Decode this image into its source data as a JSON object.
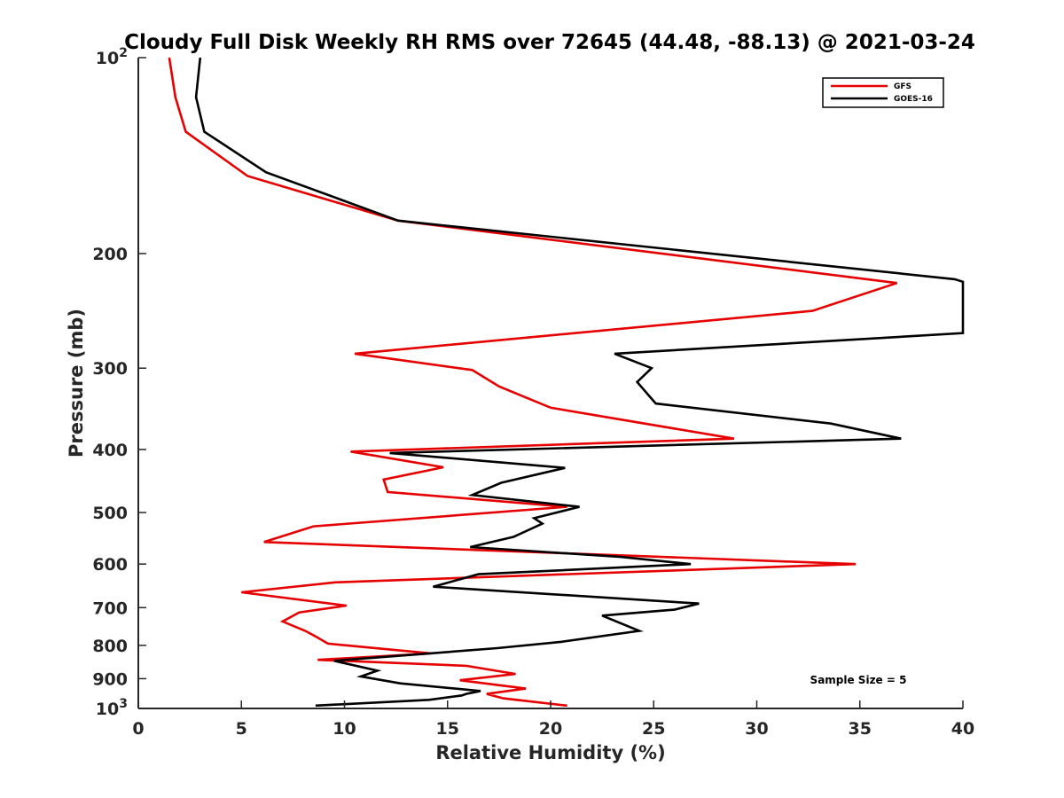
{
  "chart_data": {
    "type": "line",
    "title": "Cloudy Full Disk Weekly RH RMS over 72645 (44.48, -88.13) @ 2021-03-24",
    "xlabel": "Relative Humidity (%)",
    "ylabel": "Pressure (mb)",
    "xlim": [
      0,
      40
    ],
    "ylim": [
      100,
      1000
    ],
    "y_scale": "log",
    "y_reversed": true,
    "grid": false,
    "legend_position": "top-right",
    "x_ticks": [
      0,
      5,
      10,
      15,
      20,
      25,
      30,
      35,
      40
    ],
    "x_tick_labels": [
      "0",
      "5",
      "10",
      "15",
      "20",
      "25",
      "30",
      "35",
      "40"
    ],
    "y_ticks": [
      {
        "value": 100,
        "base": "10",
        "exp": "2"
      },
      {
        "value": 200,
        "label": "200"
      },
      {
        "value": 300,
        "label": "300"
      },
      {
        "value": 400,
        "label": "400"
      },
      {
        "value": 500,
        "label": "500"
      },
      {
        "value": 600,
        "label": "600"
      },
      {
        "value": 700,
        "label": "700"
      },
      {
        "value": 800,
        "label": "800"
      },
      {
        "value": 900,
        "label": "900"
      },
      {
        "value": 1000,
        "base": "10",
        "exp": "3"
      }
    ],
    "annotation": "Sample Size = 5",
    "series": [
      {
        "name": "GFS",
        "color": "#e60000",
        "points": [
          {
            "x": 1.5,
            "y": 100
          },
          {
            "x": 1.8,
            "y": 115
          },
          {
            "x": 2.3,
            "y": 130
          },
          {
            "x": 5.3,
            "y": 152
          },
          {
            "x": 12.6,
            "y": 178
          },
          {
            "x": 36.8,
            "y": 222
          },
          {
            "x": 32.7,
            "y": 245
          },
          {
            "x": 10.5,
            "y": 285
          },
          {
            "x": 16.2,
            "y": 302
          },
          {
            "x": 17.5,
            "y": 320
          },
          {
            "x": 20.0,
            "y": 345
          },
          {
            "x": 28.9,
            "y": 385
          },
          {
            "x": 10.3,
            "y": 403
          },
          {
            "x": 14.8,
            "y": 426
          },
          {
            "x": 11.9,
            "y": 445
          },
          {
            "x": 12.1,
            "y": 465
          },
          {
            "x": 20.8,
            "y": 490
          },
          {
            "x": 8.5,
            "y": 525
          },
          {
            "x": 6.1,
            "y": 555
          },
          {
            "x": 34.8,
            "y": 600
          },
          {
            "x": 9.6,
            "y": 640
          },
          {
            "x": 5.0,
            "y": 663
          },
          {
            "x": 10.1,
            "y": 695
          },
          {
            "x": 7.8,
            "y": 712
          },
          {
            "x": 7.0,
            "y": 735
          },
          {
            "x": 8.1,
            "y": 760
          },
          {
            "x": 8.6,
            "y": 775
          },
          {
            "x": 9.2,
            "y": 795
          },
          {
            "x": 14.2,
            "y": 823
          },
          {
            "x": 8.7,
            "y": 842
          },
          {
            "x": 15.9,
            "y": 860
          },
          {
            "x": 18.3,
            "y": 885
          },
          {
            "x": 15.6,
            "y": 905
          },
          {
            "x": 18.8,
            "y": 932
          },
          {
            "x": 16.9,
            "y": 950
          },
          {
            "x": 17.7,
            "y": 965
          },
          {
            "x": 20.8,
            "y": 990
          }
        ]
      },
      {
        "name": "GOES-16",
        "color": "#000000",
        "points": [
          {
            "x": 3.0,
            "y": 100
          },
          {
            "x": 2.8,
            "y": 115
          },
          {
            "x": 3.2,
            "y": 130
          },
          {
            "x": 6.2,
            "y": 150
          },
          {
            "x": 12.6,
            "y": 178
          },
          {
            "x": 39.6,
            "y": 219
          },
          {
            "x": 40.0,
            "y": 221
          },
          {
            "x": 40.0,
            "y": 265
          },
          {
            "x": 23.1,
            "y": 285
          },
          {
            "x": 24.9,
            "y": 300
          },
          {
            "x": 24.2,
            "y": 315
          },
          {
            "x": 25.1,
            "y": 340
          },
          {
            "x": 33.6,
            "y": 365
          },
          {
            "x": 37.0,
            "y": 385
          },
          {
            "x": 12.2,
            "y": 405
          },
          {
            "x": 20.7,
            "y": 427
          },
          {
            "x": 17.6,
            "y": 450
          },
          {
            "x": 16.2,
            "y": 470
          },
          {
            "x": 21.4,
            "y": 490
          },
          {
            "x": 19.2,
            "y": 510
          },
          {
            "x": 19.6,
            "y": 520
          },
          {
            "x": 18.2,
            "y": 545
          },
          {
            "x": 16.1,
            "y": 565
          },
          {
            "x": 23.4,
            "y": 585
          },
          {
            "x": 26.8,
            "y": 600
          },
          {
            "x": 16.5,
            "y": 622
          },
          {
            "x": 14.3,
            "y": 650
          },
          {
            "x": 27.2,
            "y": 690
          },
          {
            "x": 26.0,
            "y": 705
          },
          {
            "x": 22.5,
            "y": 720
          },
          {
            "x": 24.3,
            "y": 760
          },
          {
            "x": 20.5,
            "y": 790
          },
          {
            "x": 17.4,
            "y": 808
          },
          {
            "x": 9.5,
            "y": 845
          },
          {
            "x": 11.6,
            "y": 875
          },
          {
            "x": 10.8,
            "y": 893
          },
          {
            "x": 12.7,
            "y": 915
          },
          {
            "x": 16.6,
            "y": 940
          },
          {
            "x": 15.9,
            "y": 950
          },
          {
            "x": 15.7,
            "y": 955
          },
          {
            "x": 14.1,
            "y": 970
          },
          {
            "x": 8.6,
            "y": 990
          }
        ]
      }
    ]
  }
}
